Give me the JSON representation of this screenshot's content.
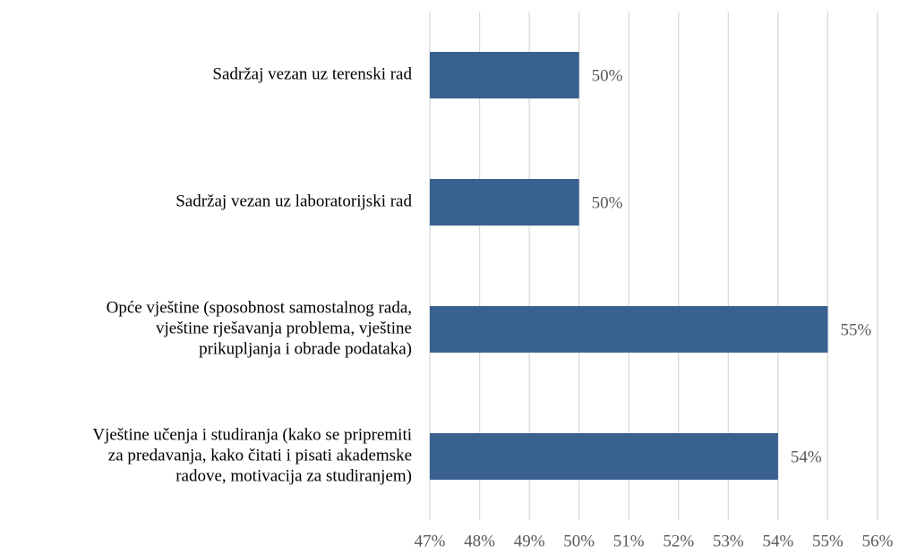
{
  "chart_data": {
    "type": "bar",
    "orientation": "horizontal",
    "categories": [
      [
        "Sadržaj vezan uz terenski rad"
      ],
      [
        "Sadržaj vezan uz laboratorijski rad"
      ],
      [
        "Opće vještine (sposobnost samostalnog rada,",
        "vještine rješavanja problema, vještine",
        "prikupljanja i obrade podataka)"
      ],
      [
        "Vještine učenja i studiranja (kako se pripremiti",
        "za predavanja, kako čitati i pisati akademske",
        "radove, motivacija za studiranjem)"
      ]
    ],
    "values": [
      50,
      50,
      55,
      54
    ],
    "value_labels": [
      "50%",
      "50%",
      "55%",
      "54%"
    ],
    "color": "#386190",
    "xlim": [
      47,
      56
    ],
    "xticks": [
      {
        "value": 47,
        "label": "47%"
      },
      {
        "value": 48,
        "label": "48%"
      },
      {
        "value": 49,
        "label": "49%"
      },
      {
        "value": 50,
        "label": "50%"
      },
      {
        "value": 51,
        "label": "51%"
      },
      {
        "value": 52,
        "label": "52%"
      },
      {
        "value": 53,
        "label": "53%"
      },
      {
        "value": 54,
        "label": "54%"
      },
      {
        "value": 55,
        "label": "55%"
      },
      {
        "value": 56,
        "label": "56%"
      }
    ],
    "grid": true
  }
}
